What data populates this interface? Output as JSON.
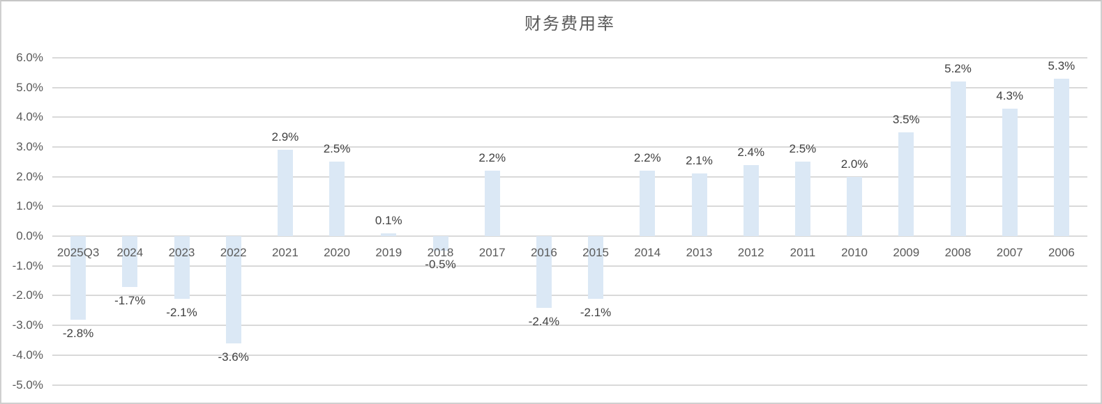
{
  "chart_data": {
    "type": "bar",
    "title": "财务费用率",
    "xlabel": "",
    "ylabel": "",
    "categories": [
      "2025Q3",
      "2024",
      "2023",
      "2022",
      "2021",
      "2020",
      "2019",
      "2018",
      "2017",
      "2016",
      "2015",
      "2014",
      "2013",
      "2012",
      "2011",
      "2010",
      "2009",
      "2008",
      "2007",
      "2006"
    ],
    "values": [
      -2.8,
      -1.7,
      -2.1,
      -3.6,
      2.9,
      2.5,
      0.1,
      -0.5,
      2.2,
      -2.4,
      -2.1,
      2.2,
      2.1,
      2.4,
      2.5,
      2.0,
      3.5,
      5.2,
      4.3,
      5.3
    ],
    "value_labels": [
      "-2.8%",
      "-1.7%",
      "-2.1%",
      "-3.6%",
      "2.9%",
      "2.5%",
      "0.1%",
      "-0.5%",
      "2.2%",
      "-2.4%",
      "-2.1%",
      "2.2%",
      "2.1%",
      "2.4%",
      "2.5%",
      "2.0%",
      "3.5%",
      "5.2%",
      "4.3%",
      "5.3%"
    ],
    "ylim": [
      -5,
      6
    ],
    "ytick_step": 1,
    "yticks": [
      "6.0%",
      "5.0%",
      "4.0%",
      "3.0%",
      "2.0%",
      "1.0%",
      "0.0%",
      "-1.0%",
      "-2.0%",
      "-3.0%",
      "-4.0%",
      "-5.0%"
    ],
    "grid": true,
    "legend": "none",
    "data_label_position": "outside-end",
    "colors": {
      "bar": "#dbe8f5",
      "gridline": "#d9d9d9",
      "axis_text": "#595959",
      "value_label_text": "#404040",
      "title_text": "#595959",
      "background": "#ffffff"
    }
  }
}
